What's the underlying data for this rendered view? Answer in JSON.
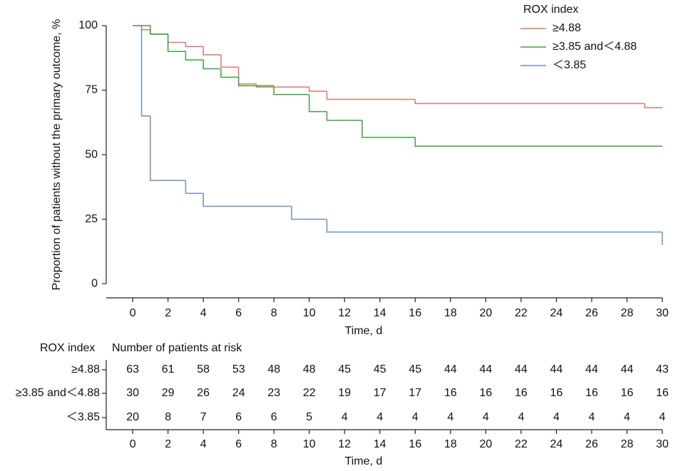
{
  "chart_data": {
    "type": "step",
    "xlabel": "Time, d",
    "ylabel": "Proportion of patients without the primary outcome, %",
    "legend_title": "ROX index",
    "legend": "upper right",
    "xlim": [
      -1.5,
      30
    ],
    "xticks": [
      0,
      2,
      4,
      6,
      8,
      10,
      12,
      14,
      16,
      18,
      20,
      22,
      24,
      26,
      28,
      30
    ],
    "ylim": [
      -5.5,
      100
    ],
    "yticks": [
      0,
      25,
      50,
      75,
      100
    ],
    "series": [
      {
        "name": "≥4.88",
        "color": "#e8736b",
        "x": [
          0,
          0.5,
          1,
          2,
          3,
          4,
          5,
          6,
          7,
          10,
          11,
          16,
          29,
          30
        ],
        "values": [
          100,
          98.4,
          96.8,
          93.5,
          91.9,
          88.7,
          83.9,
          77.4,
          76.2,
          74.6,
          71.4,
          69.8,
          68.2,
          68.2
        ]
      },
      {
        "name": "≥3.85 and＜4.88",
        "color": "#3aa63a",
        "x": [
          0,
          1,
          2,
          3,
          4,
          5,
          6,
          8,
          10,
          11,
          13,
          16,
          30
        ],
        "values": [
          100,
          96.7,
          90,
          86.7,
          83.3,
          80,
          76.7,
          73.3,
          66.7,
          63.3,
          56.7,
          53.3,
          53.3
        ]
      },
      {
        "name": "＜3.85",
        "color": "#6f8fca",
        "x": [
          0,
          0.5,
          1,
          3,
          4,
          9,
          11,
          30
        ],
        "values": [
          100,
          65,
          40,
          35,
          30,
          25,
          20,
          15
        ]
      }
    ]
  },
  "risk_table": {
    "title": "ROX index",
    "subtitle": "Number of patients at risk",
    "xlabel": "Time, d",
    "times": [
      0,
      2,
      4,
      6,
      8,
      10,
      12,
      14,
      16,
      18,
      20,
      22,
      24,
      26,
      28,
      30
    ],
    "rows": [
      {
        "label": "≥4.88",
        "counts": [
          63,
          61,
          58,
          53,
          48,
          48,
          45,
          45,
          45,
          44,
          44,
          44,
          44,
          44,
          44,
          43
        ]
      },
      {
        "label": "≥3.85 and＜4.88",
        "counts": [
          30,
          29,
          26,
          24,
          23,
          22,
          19,
          17,
          17,
          16,
          16,
          16,
          16,
          16,
          16,
          16
        ]
      },
      {
        "label": "＜3.85",
        "counts": [
          20,
          8,
          7,
          6,
          6,
          5,
          4,
          4,
          4,
          4,
          4,
          4,
          4,
          4,
          4,
          4
        ]
      }
    ]
  }
}
